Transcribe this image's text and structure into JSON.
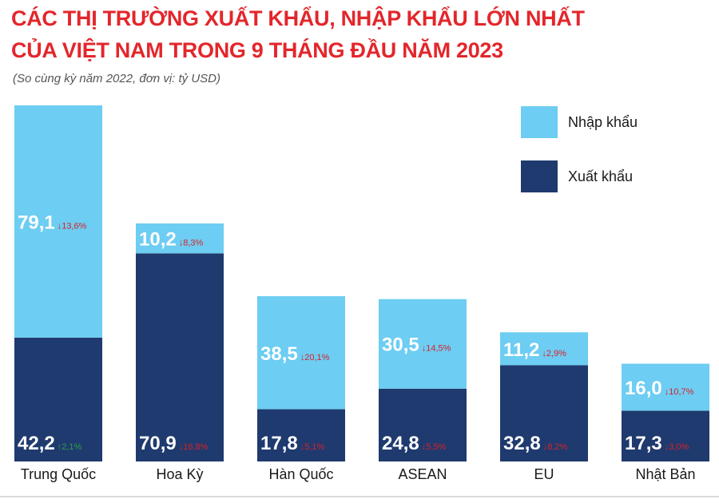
{
  "title_line1": "CÁC THỊ TRƯỜNG XUẤT KHẨU, NHẬP KHẨU LỚN NHẤT",
  "title_line2": "CỦA VIỆT NAM TRONG 9 THÁNG ĐẦU NĂM 2023",
  "subtitle": "(So cùng kỳ năm 2022, đơn vị: tỷ USD)",
  "colors": {
    "import": "#6dcdf2",
    "export": "#1f3a6e",
    "down": "#d7222b",
    "up": "#2e9e46",
    "value_text": "#ffffff"
  },
  "chart_data": {
    "type": "bar",
    "stacked": true,
    "title": "CÁC THỊ TRƯỜNG XUẤT KHẨU, NHẬP KHẨU LỚN NHẤT CỦA VIỆT NAM TRONG 9 THÁNG ĐẦU NĂM 2023",
    "subtitle": "(So cùng kỳ năm 2022, đơn vị: tỷ USD)",
    "legend_position": "top-right",
    "grid": false,
    "categories": [
      "Trung Quốc",
      "Hoa Kỳ",
      "Hàn Quốc",
      "ASEAN",
      "EU",
      "Nhật Bản"
    ],
    "series": [
      {
        "name": "Xuất khẩu",
        "values": [
          42.2,
          70.9,
          17.8,
          24.8,
          32.8,
          17.3
        ],
        "labels": [
          "42,2",
          "70,9",
          "17,8",
          "24,8",
          "32,8",
          "17,3"
        ],
        "changes": [
          "2,1%",
          "16,8%",
          "5,1%",
          "5,5%",
          "8,2%",
          "3,0%"
        ],
        "directions": [
          "up",
          "down",
          "down",
          "down",
          "down",
          "down"
        ]
      },
      {
        "name": "Nhập khẩu",
        "values": [
          79.1,
          10.2,
          38.5,
          30.5,
          11.2,
          16.0
        ],
        "labels": [
          "79,1",
          "10,2",
          "38,5",
          "30,5",
          "11,2",
          "16,0"
        ],
        "changes": [
          "13,6%",
          "8,3%",
          "20,1%",
          "14,5%",
          "2,9%",
          "10,7%"
        ],
        "directions": [
          "down",
          "down",
          "down",
          "down",
          "down",
          "down"
        ]
      }
    ],
    "ylim": [
      0,
      121.3
    ]
  }
}
